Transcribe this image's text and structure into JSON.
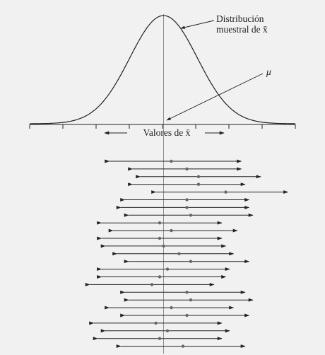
{
  "figure": {
    "curve_label_line1": "Distribución",
    "curve_label_line2": "muestral de x̄",
    "mu_label": "μ",
    "axis_label": "Valores de x̄"
  },
  "chart_data": {
    "type": "diagram",
    "description_of_intervals": "25 confidence intervals with sample means around μ",
    "intervals": [
      {
        "lo": 0.43,
        "mean": 0.51,
        "hi": 0.6
      },
      {
        "lo": 0.46,
        "mean": 0.53,
        "hi": 0.6
      },
      {
        "lo": 0.47,
        "mean": 0.545,
        "hi": 0.625
      },
      {
        "lo": 0.46,
        "mean": 0.545,
        "hi": 0.605
      },
      {
        "lo": 0.49,
        "mean": 0.58,
        "hi": 0.66
      },
      {
        "lo": 0.45,
        "mean": 0.53,
        "hi": 0.61
      },
      {
        "lo": 0.445,
        "mean": 0.53,
        "hi": 0.61
      },
      {
        "lo": 0.455,
        "mean": 0.535,
        "hi": 0.615
      },
      {
        "lo": 0.42,
        "mean": 0.495,
        "hi": 0.575
      },
      {
        "lo": 0.435,
        "mean": 0.51,
        "hi": 0.595
      },
      {
        "lo": 0.42,
        "mean": 0.495,
        "hi": 0.575
      },
      {
        "lo": 0.425,
        "mean": 0.5,
        "hi": 0.58
      },
      {
        "lo": 0.44,
        "mean": 0.52,
        "hi": 0.59
      },
      {
        "lo": 0.455,
        "mean": 0.535,
        "hi": 0.61
      },
      {
        "lo": 0.42,
        "mean": 0.505,
        "hi": 0.585
      },
      {
        "lo": 0.42,
        "mean": 0.495,
        "hi": 0.58
      },
      {
        "lo": 0.405,
        "mean": 0.485,
        "hi": 0.565
      },
      {
        "lo": 0.45,
        "mean": 0.53,
        "hi": 0.605
      },
      {
        "lo": 0.455,
        "mean": 0.535,
        "hi": 0.615
      },
      {
        "lo": 0.43,
        "mean": 0.51,
        "hi": 0.59
      },
      {
        "lo": 0.45,
        "mean": 0.53,
        "hi": 0.61
      },
      {
        "lo": 0.41,
        "mean": 0.49,
        "hi": 0.575
      },
      {
        "lo": 0.425,
        "mean": 0.505,
        "hi": 0.585
      },
      {
        "lo": 0.415,
        "mean": 0.495,
        "hi": 0.575
      },
      {
        "lo": 0.445,
        "mean": 0.525,
        "hi": 0.605
      }
    ],
    "mu": 0.5
  }
}
